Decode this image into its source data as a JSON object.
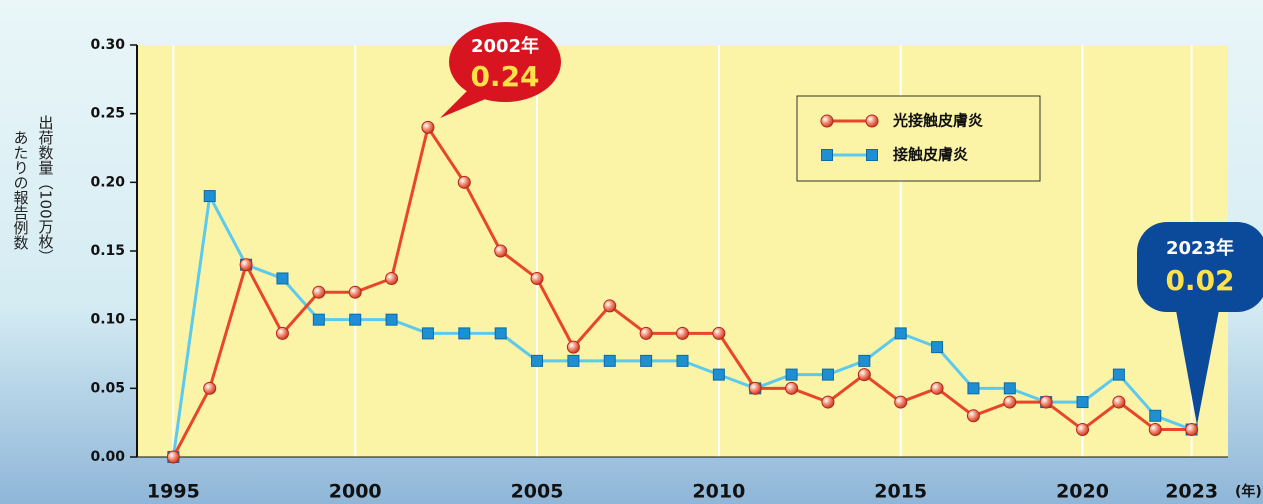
{
  "chart_data": {
    "type": "line",
    "y_label_line1": "出荷数量（100万枚）",
    "y_label_line2": "あたりの報告例数",
    "x_unit": "(年)",
    "x": [
      1995,
      1996,
      1997,
      1998,
      1999,
      2000,
      2001,
      2002,
      2003,
      2004,
      2005,
      2006,
      2007,
      2008,
      2009,
      2010,
      2011,
      2012,
      2013,
      2014,
      2015,
      2016,
      2017,
      2018,
      2019,
      2020,
      2021,
      2022,
      2023
    ],
    "series": [
      {
        "name": "光接触皮膚炎",
        "color": "#e8452a",
        "marker": "circle",
        "values": [
          0,
          0.05,
          0.14,
          0.09,
          0.12,
          0.12,
          0.13,
          0.24,
          0.2,
          0.15,
          0.13,
          0.08,
          0.11,
          0.09,
          0.09,
          0.09,
          0.05,
          0.05,
          0.04,
          0.06,
          0.04,
          0.05,
          0.03,
          0.04,
          0.04,
          0.02,
          0.04,
          0.02,
          0.02
        ]
      },
      {
        "name": "接触皮膚炎",
        "color": "#5cc9ee",
        "marker": "square",
        "values": [
          0,
          0.19,
          0.14,
          0.13,
          0.1,
          0.1,
          0.1,
          0.09,
          0.09,
          0.09,
          0.07,
          0.07,
          0.07,
          0.07,
          0.07,
          0.06,
          0.05,
          0.06,
          0.06,
          0.07,
          0.09,
          0.08,
          0.05,
          0.05,
          0.04,
          0.04,
          0.06,
          0.03,
          0.02
        ]
      }
    ],
    "xlim": [
      1994,
      2024
    ],
    "xticks": [
      1995,
      2000,
      2005,
      2010,
      2015,
      2020,
      2023
    ],
    "ylim": [
      0,
      0.3
    ],
    "yticks": [
      {
        "value": 0,
        "label": "0.00"
      },
      {
        "value": 0.05,
        "label": "0.05"
      },
      {
        "value": 0.1,
        "label": "0.10"
      },
      {
        "value": 0.15,
        "label": "0.15"
      },
      {
        "value": 0.2,
        "label": "0.20"
      },
      {
        "value": 0.25,
        "label": "0.25"
      },
      {
        "value": 0.3,
        "label": "0.30"
      }
    ],
    "grid": true,
    "legend": "upper-right",
    "annotations": [
      {
        "year_label": "2002年",
        "value_label": "0.24",
        "color": "#d7141f"
      },
      {
        "year_label": "2023年",
        "value_label": "0.02",
        "color": "#0b4a9a"
      }
    ]
  }
}
